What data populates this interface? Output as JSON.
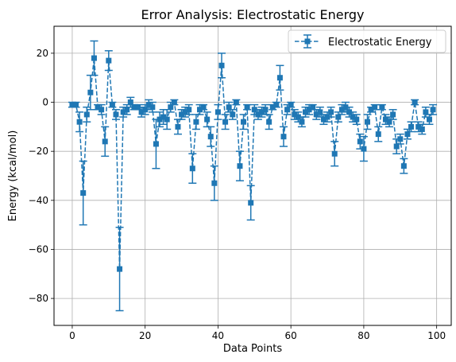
{
  "chart_data": {
    "type": "scatter",
    "title": "Error Analysis: Electrostatic Energy",
    "xlabel": "Data Points",
    "ylabel": "Energy (kcal/mol)",
    "xlim": [
      -5,
      104
    ],
    "ylim": [
      -91,
      31
    ],
    "xticks": [
      0,
      20,
      40,
      60,
      80,
      100
    ],
    "yticks": [
      -80,
      -60,
      -40,
      -20,
      0,
      20
    ],
    "grid": true,
    "legend_position": "top-right",
    "colors": {
      "series": "#1f77b4",
      "grid": "#b0b0b0",
      "axis": "#000000"
    },
    "series": [
      {
        "name": "Electrostatic Energy",
        "style": "dashed line with square markers and error bars",
        "x": [
          0,
          1,
          2,
          3,
          4,
          5,
          6,
          7,
          8,
          9,
          10,
          11,
          12,
          13,
          14,
          15,
          16,
          17,
          18,
          19,
          20,
          21,
          22,
          23,
          24,
          25,
          26,
          27,
          28,
          29,
          30,
          31,
          32,
          33,
          34,
          35,
          36,
          37,
          38,
          39,
          40,
          41,
          42,
          43,
          44,
          45,
          46,
          47,
          48,
          49,
          50,
          51,
          52,
          53,
          54,
          55,
          56,
          57,
          58,
          59,
          60,
          61,
          62,
          63,
          64,
          65,
          66,
          67,
          68,
          69,
          70,
          71,
          72,
          73,
          74,
          75,
          76,
          77,
          78,
          79,
          80,
          81,
          82,
          83,
          84,
          85,
          86,
          87,
          88,
          89,
          90,
          91,
          92,
          93,
          94,
          95,
          96,
          97,
          98,
          99
        ],
        "y": [
          -1,
          -1,
          -8,
          -37,
          -5,
          4,
          18,
          -2,
          -3,
          -16,
          17,
          -1,
          -5,
          -68,
          -4,
          -3,
          0,
          -2,
          -2,
          -4,
          -3,
          -1,
          -2,
          -17,
          -7,
          -6,
          -7,
          -2,
          0,
          -10,
          -5,
          -4,
          -3,
          -27,
          -8,
          -3,
          -2,
          -7,
          -14,
          -33,
          -4,
          15,
          -8,
          -2,
          -5,
          0,
          -26,
          -8,
          -2,
          -41,
          -3,
          -5,
          -4,
          -3,
          -8,
          -2,
          -1,
          10,
          -14,
          -3,
          -1,
          -5,
          -6,
          -8,
          -4,
          -3,
          -2,
          -5,
          -4,
          -7,
          -6,
          -4,
          -21,
          -6,
          -3,
          -2,
          -4,
          -6,
          -7,
          -16,
          -19,
          -8,
          -3,
          -2,
          -13,
          -2,
          -7,
          -8,
          -5,
          -18,
          -15,
          -26,
          -13,
          -10,
          0,
          -10,
          -11,
          -4,
          -7,
          -3
        ],
        "error": [
          1,
          1,
          4,
          13,
          3,
          7,
          7,
          1,
          2,
          6,
          4,
          1,
          2,
          17,
          2,
          2,
          2,
          1,
          1,
          2,
          2,
          2,
          2,
          10,
          3,
          3,
          4,
          2,
          1,
          3,
          2,
          2,
          2,
          6,
          3,
          2,
          1,
          3,
          4,
          7,
          3,
          5,
          3,
          2,
          2,
          1,
          6,
          3,
          1,
          7,
          2,
          2,
          2,
          2,
          3,
          1,
          1,
          5,
          4,
          2,
          1,
          2,
          2,
          2,
          2,
          2,
          1,
          2,
          2,
          2,
          2,
          2,
          5,
          2,
          2,
          2,
          2,
          2,
          2,
          3,
          5,
          3,
          1,
          1,
          3,
          1,
          2,
          2,
          2,
          3,
          2,
          3,
          2,
          2,
          1,
          2,
          2,
          2,
          2,
          2
        ]
      }
    ]
  }
}
